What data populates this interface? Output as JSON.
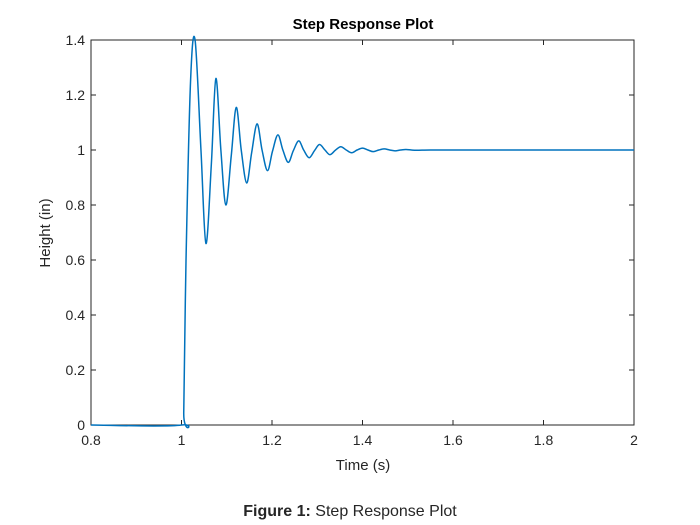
{
  "chart_data": {
    "type": "line",
    "title": "Step Response Plot",
    "xlabel": "Time (s)",
    "ylabel": "Height (in)",
    "xlim": [
      0.8,
      2
    ],
    "ylim": [
      0,
      1.4
    ],
    "xticks": [
      "0.8",
      "1",
      "1.2",
      "1.4",
      "1.6",
      "1.8",
      "2"
    ],
    "yticks": [
      "0",
      "0.2",
      "0.4",
      "0.6",
      "0.8",
      "1",
      "1.2",
      "1.4"
    ],
    "grid": false,
    "series": [
      {
        "color": "#0072bd",
        "x": [
          0.8,
          1.0,
          1.005,
          1.01,
          1.02,
          1.03,
          1.043,
          1.054,
          1.066,
          1.076,
          1.087,
          1.098,
          1.11,
          1.121,
          1.132,
          1.144,
          1.155,
          1.167,
          1.178,
          1.19,
          1.201,
          1.213,
          1.224,
          1.236,
          1.247,
          1.259,
          1.27,
          1.282,
          1.294,
          1.305,
          1.317,
          1.328,
          1.34,
          1.352,
          1.364,
          1.376,
          1.388,
          1.4,
          1.412,
          1.424,
          1.436,
          1.448,
          1.46,
          1.472,
          1.484,
          1.496,
          1.508,
          1.52,
          1.55,
          1.6,
          2.0
        ],
        "y": [
          0,
          0,
          0.05,
          0.6,
          1.25,
          1.4,
          1.0,
          0.66,
          0.95,
          1.26,
          1.0,
          0.8,
          0.98,
          1.155,
          1.0,
          0.88,
          0.99,
          1.095,
          1.0,
          0.925,
          0.995,
          1.055,
          1.0,
          0.955,
          0.997,
          1.033,
          1.0,
          0.972,
          0.998,
          1.02,
          1.0,
          0.983,
          0.999,
          1.012,
          1.0,
          0.99,
          1.0,
          1.007,
          1.0,
          0.994,
          1.0,
          1.004,
          1.0,
          0.997,
          1.0,
          1.002,
          1.0,
          0.999,
          1.0,
          1.0,
          1.0
        ]
      }
    ]
  },
  "caption": {
    "label": "Figure 1:",
    "text": "Step Response Plot"
  }
}
